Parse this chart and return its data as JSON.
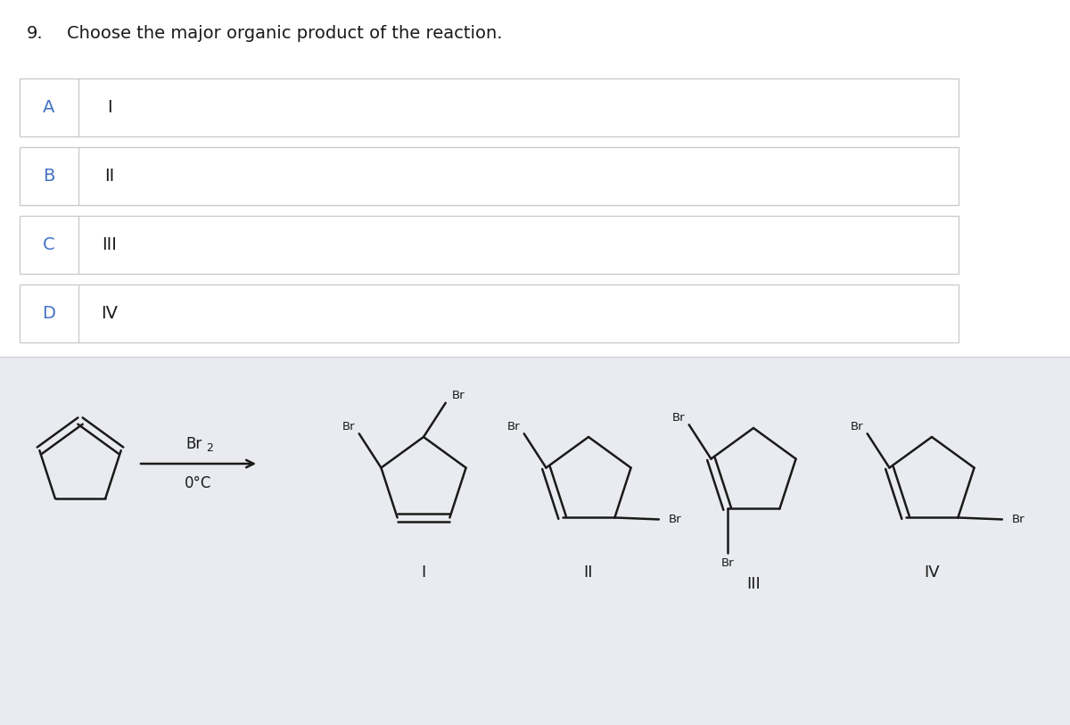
{
  "title_num": "9.",
  "title_text": "Choose the major organic product of the reaction.",
  "options": [
    "A",
    "B",
    "C",
    "D"
  ],
  "option_labels": [
    "I",
    "II",
    "III",
    "IV"
  ],
  "bg_color": "#ffffff",
  "panel_bg": "#ffffff",
  "border_color": "#c8c8c8",
  "option_letter_color": "#4472c4",
  "text_color": "#1a1a1a",
  "bottom_bg": "#e9ebf0",
  "line_color": "#1a1a1a",
  "title_fontsize": 14,
  "option_fontsize": 14,
  "roman_fontsize": 13,
  "br_fontsize": 9.5
}
